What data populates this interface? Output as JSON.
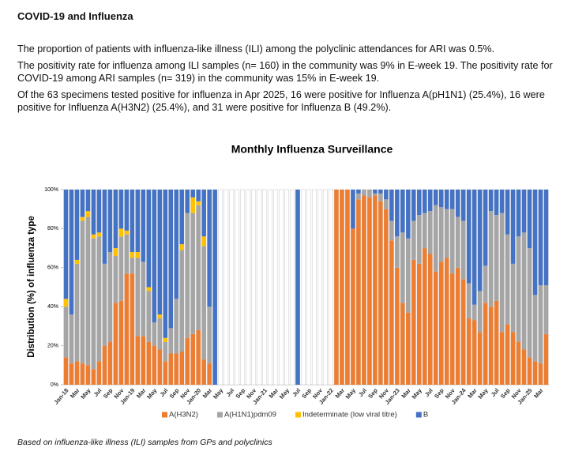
{
  "header": {
    "title": "COVID-19 and Influenza"
  },
  "paragraphs": [
    "The proportion of patients with influenza-like illness (ILI) among the polyclinic attendances for ARI was 0.5%.",
    "The positivity rate for influenza among ILI samples (n= 160) in the community was 9% in E-week 19. The positivity rate for COVID-19 among ARI samples (n= 319) in the community was 15% in E-week 19.",
    "Of the 63 specimens tested positive for influenza in Apr 2025, 16 were positive for Influenza A(pH1N1) (25.4%), 16 were positive for Influenza A(H3N2) (25.4%), and 31 were positive for Influenza B (49.2%)."
  ],
  "footnote": "Based on influenza-like illness (ILI) samples from GPs and polyclinics",
  "chart_data": {
    "type": "stacked_bar",
    "title": "Monthly Influenza Surveillance",
    "y_label": "Distribution (%) of influenza  type",
    "categories": [
      "Jan-18",
      null,
      "Mar",
      null,
      "May",
      null,
      "Jul",
      null,
      "Sep",
      null,
      "Nov",
      null,
      "Jan-19",
      null,
      "Mar",
      null,
      "May",
      null,
      "Jul",
      null,
      "Sep",
      null,
      "Nov",
      null,
      "Jan-20",
      null,
      "Mar",
      null,
      "May",
      null,
      "Jul",
      null,
      "Sep",
      null,
      "Nov",
      null,
      "Jan-21",
      null,
      "Mar",
      null,
      "May",
      null,
      "Jul",
      null,
      "Sep",
      null,
      "Nov",
      null,
      "Jan-22",
      null,
      "Mar",
      null,
      "May",
      null,
      "Jul",
      null,
      "Sep",
      null,
      "Nov",
      null,
      "Jan-23",
      null,
      "Mar",
      null,
      "May",
      null,
      "Jul",
      null,
      "Sep",
      null,
      "Nov",
      null,
      "Jan-24",
      null,
      "Mar",
      null,
      "May",
      null,
      "Jul",
      null,
      "Sep",
      null,
      "Nov",
      null,
      "Jan-25",
      null,
      "Mar",
      null
    ],
    "series": [
      {
        "name": "A(H3N2)",
        "color": "#ED7D31",
        "values": [
          14,
          11,
          12,
          11,
          10,
          8,
          12,
          20,
          22,
          42,
          43,
          57,
          57,
          25,
          25,
          22,
          20,
          18,
          12,
          16,
          16,
          17,
          24,
          26,
          28,
          13,
          11,
          0,
          null,
          null,
          null,
          null,
          null,
          null,
          null,
          null,
          null,
          null,
          null,
          null,
          null,
          null,
          0,
          null,
          null,
          null,
          null,
          null,
          null,
          100,
          100,
          100,
          80,
          95,
          97,
          96,
          97,
          94,
          90,
          74,
          60,
          42,
          37,
          64,
          62,
          70,
          67,
          58,
          63,
          65,
          57,
          60,
          54,
          34,
          33,
          27,
          42,
          40,
          43,
          27,
          31,
          27,
          22,
          18,
          14,
          12,
          11,
          26
        ]
      },
      {
        "name": "A(H1N1)pdm09",
        "color": "#A5A5A5",
        "values": [
          26,
          25,
          50,
          73,
          76,
          67,
          64,
          42,
          46,
          24,
          33,
          20,
          8,
          40,
          38,
          26,
          12,
          16,
          10,
          13,
          28,
          52,
          64,
          62,
          64,
          58,
          29,
          0,
          null,
          null,
          null,
          null,
          null,
          null,
          null,
          null,
          null,
          null,
          null,
          null,
          null,
          null,
          0,
          null,
          null,
          null,
          null,
          null,
          null,
          0,
          0,
          0,
          0,
          3,
          3,
          4,
          1,
          4,
          5,
          10,
          16,
          36,
          38,
          20,
          25,
          18,
          22,
          34,
          28,
          25,
          33,
          26,
          30,
          18,
          8,
          21,
          19,
          49,
          44,
          61,
          46,
          35,
          54,
          60,
          56,
          34,
          40,
          25
        ]
      },
      {
        "name": "Indeterminate (low viral titre)",
        "color": "#FFC000",
        "values": [
          4,
          0,
          2,
          2,
          3,
          2,
          2,
          0,
          0,
          4,
          4,
          2,
          3,
          3,
          0,
          2,
          0,
          2,
          2,
          0,
          0,
          3,
          0,
          8,
          2,
          5,
          0,
          0,
          null,
          null,
          null,
          null,
          null,
          null,
          null,
          null,
          null,
          null,
          null,
          null,
          null,
          null,
          0,
          null,
          null,
          null,
          null,
          null,
          null,
          0,
          0,
          0,
          0,
          0,
          0,
          0,
          0,
          0,
          0,
          0,
          0,
          0,
          0,
          0,
          0,
          0,
          0,
          0,
          0,
          0,
          0,
          0,
          0,
          0,
          0,
          0,
          0,
          0,
          0,
          0,
          0,
          0,
          0,
          0,
          0,
          0,
          0,
          0
        ]
      },
      {
        "name": "B",
        "color": "#4472C4",
        "values": [
          56,
          64,
          36,
          14,
          11,
          23,
          22,
          38,
          32,
          30,
          20,
          21,
          32,
          32,
          37,
          50,
          68,
          64,
          76,
          71,
          56,
          28,
          12,
          4,
          6,
          24,
          60,
          100,
          null,
          null,
          null,
          null,
          null,
          null,
          null,
          null,
          null,
          null,
          null,
          null,
          null,
          null,
          100,
          null,
          null,
          null,
          null,
          null,
          null,
          0,
          0,
          0,
          20,
          2,
          0,
          0,
          2,
          2,
          5,
          16,
          24,
          22,
          25,
          16,
          13,
          12,
          11,
          8,
          9,
          10,
          10,
          14,
          16,
          48,
          59,
          52,
          39,
          11,
          13,
          12,
          23,
          38,
          24,
          22,
          30,
          54,
          49,
          49
        ]
      }
    ],
    "ylim": [
      0,
      100
    ],
    "yticks": [
      {
        "value": 0,
        "label": "0%"
      },
      {
        "value": 20,
        "label": "20%"
      },
      {
        "value": 40,
        "label": "40%"
      },
      {
        "value": 60,
        "label": "60%"
      },
      {
        "value": 80,
        "label": "80%"
      },
      {
        "value": 100,
        "label": "100%"
      }
    ],
    "legend": "bottom"
  }
}
